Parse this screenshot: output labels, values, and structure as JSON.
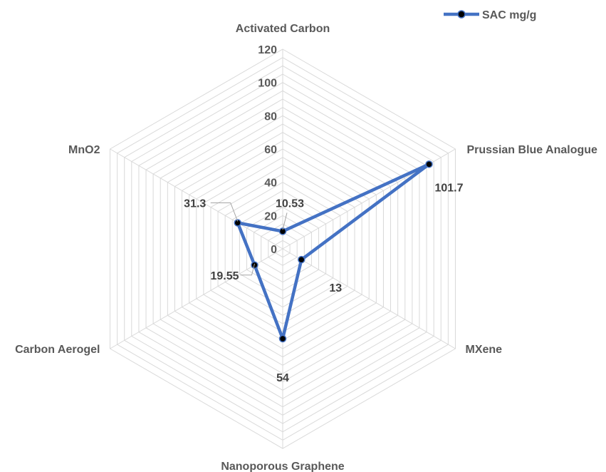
{
  "chart_data": {
    "type": "radar",
    "categories": [
      "Activated Carbon",
      "Prussian Blue Analogue",
      "MXene",
      "Nanoporous Graphene",
      "Carbon Aerogel",
      "MnO2"
    ],
    "series": [
      {
        "name": "SAC mg/g",
        "values": [
          10.53,
          101.7,
          13,
          54,
          19.55,
          31.3
        ],
        "value_labels": [
          "10.53",
          "101.7",
          "13",
          "54",
          "19.55",
          "31.3"
        ],
        "color": "#4472C4",
        "marker_color": "#000000"
      }
    ],
    "rlim": [
      0,
      120
    ],
    "major_ticks": [
      0,
      20,
      40,
      60,
      80,
      100,
      120
    ],
    "tick_labels": [
      "0",
      "20",
      "40",
      "60",
      "80",
      "100",
      "120"
    ],
    "minor_step": 5,
    "grid": true,
    "grid_color": "#D9D9D9",
    "legend_position": "top-right"
  }
}
